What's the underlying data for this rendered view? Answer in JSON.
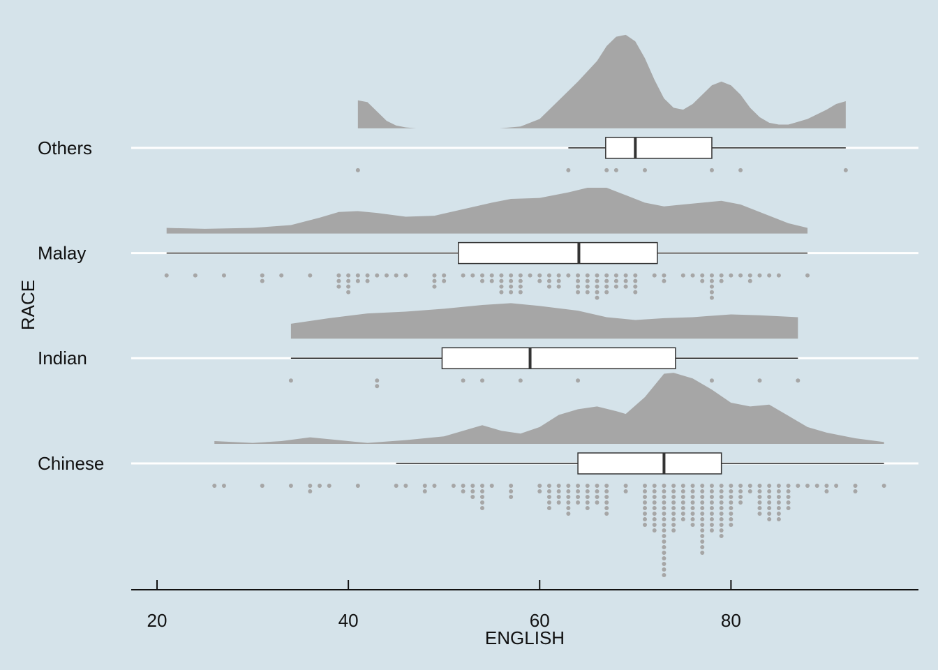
{
  "chart_data": {
    "type": "raincloud",
    "x_label": "ENGLISH",
    "y_label": "RACE",
    "xlim": [
      17.3,
      99.6
    ],
    "xticks": [
      20,
      40,
      60,
      80
    ],
    "grid": true,
    "color": "#a6a6a6",
    "categories": [
      "Chinese",
      "Indian",
      "Malay",
      "Others"
    ],
    "groups": [
      {
        "box": [
          45,
          64,
          73,
          79,
          96
        ],
        "density_x": [
          26,
          30,
          33,
          36,
          39,
          42,
          46,
          50,
          52,
          54,
          56,
          58,
          60,
          62,
          64,
          66,
          68,
          69,
          71,
          73,
          74,
          76,
          78,
          80,
          82,
          84,
          86,
          88,
          90,
          93,
          96
        ],
        "density_y": [
          0.03,
          0.01,
          0.03,
          0.07,
          0.04,
          0.01,
          0.04,
          0.08,
          0.14,
          0.2,
          0.14,
          0.11,
          0.18,
          0.31,
          0.37,
          0.4,
          0.35,
          0.32,
          0.5,
          0.75,
          0.76,
          0.7,
          0.58,
          0.44,
          0.4,
          0.42,
          0.3,
          0.18,
          0.12,
          0.06,
          0.02
        ],
        "dot_x": [
          26,
          27,
          31,
          34,
          36,
          37,
          38,
          41,
          45,
          46,
          48,
          49,
          51,
          52,
          53,
          54,
          55,
          57,
          60,
          61,
          62,
          63,
          64,
          65,
          66,
          67,
          69,
          71,
          72,
          73,
          74,
          75,
          76,
          77,
          78,
          79,
          80,
          81,
          82,
          83,
          84,
          85,
          86,
          87,
          88,
          89,
          90,
          91,
          93,
          96
        ],
        "dot_counts": [
          1,
          1,
          1,
          1,
          2,
          1,
          1,
          1,
          1,
          1,
          2,
          1,
          1,
          2,
          3,
          5,
          1,
          3,
          2,
          5,
          4,
          6,
          4,
          5,
          4,
          6,
          2,
          8,
          9,
          17,
          9,
          7,
          8,
          13,
          9,
          10,
          8,
          4,
          2,
          6,
          7,
          7,
          5,
          1,
          1,
          1,
          2,
          1,
          2,
          1
        ]
      },
      {
        "box": [
          34,
          49.8,
          59,
          74.2,
          87
        ],
        "density_x": [
          34,
          38,
          42,
          46,
          50,
          54,
          57,
          60,
          64,
          67,
          70,
          73,
          76,
          80,
          83,
          87
        ],
        "density_y": [
          0.16,
          0.22,
          0.27,
          0.29,
          0.32,
          0.36,
          0.38,
          0.35,
          0.3,
          0.23,
          0.2,
          0.22,
          0.23,
          0.26,
          0.25,
          0.23
        ],
        "dot_x": [
          34,
          43,
          52,
          54,
          58,
          64,
          78,
          83,
          87
        ],
        "dot_counts": [
          1,
          2,
          1,
          1,
          1,
          1,
          1,
          1,
          1
        ]
      },
      {
        "box": [
          21,
          51.5,
          64.1,
          72.3,
          88
        ],
        "density_x": [
          21,
          25,
          30,
          34,
          37,
          39,
          41,
          43,
          46,
          49,
          52,
          55,
          57,
          60,
          63,
          65,
          67,
          69,
          71,
          73,
          75,
          77,
          79,
          81,
          84,
          86,
          88
        ],
        "density_y": [
          0.06,
          0.05,
          0.06,
          0.09,
          0.17,
          0.23,
          0.24,
          0.22,
          0.18,
          0.19,
          0.26,
          0.33,
          0.37,
          0.38,
          0.44,
          0.49,
          0.49,
          0.41,
          0.33,
          0.29,
          0.31,
          0.33,
          0.35,
          0.31,
          0.19,
          0.11,
          0.06
        ],
        "dot_x": [
          21,
          24,
          27,
          31,
          33,
          36,
          39,
          40,
          41,
          42,
          43,
          44,
          45,
          46,
          49,
          50,
          52,
          53,
          54,
          55,
          56,
          57,
          58,
          59,
          60,
          61,
          62,
          63,
          64,
          65,
          66,
          67,
          68,
          69,
          70,
          72,
          73,
          75,
          76,
          77,
          78,
          79,
          80,
          81,
          82,
          83,
          84,
          85,
          88
        ],
        "dot_counts": [
          1,
          1,
          1,
          2,
          1,
          1,
          3,
          4,
          2,
          2,
          1,
          1,
          1,
          1,
          3,
          2,
          1,
          1,
          2,
          2,
          4,
          4,
          4,
          1,
          2,
          3,
          3,
          1,
          4,
          4,
          5,
          4,
          3,
          3,
          4,
          1,
          2,
          1,
          1,
          2,
          5,
          2,
          1,
          1,
          2,
          1,
          1,
          1,
          1
        ]
      },
      {
        "box": [
          63,
          66.9,
          70,
          78,
          92
        ],
        "density_x": [
          41,
          42,
          43,
          44,
          45,
          46,
          47.1,
          null,
          55.8,
          58,
          60,
          62,
          64,
          66,
          67,
          68,
          69,
          70,
          71,
          72,
          73,
          74,
          75,
          76,
          77,
          78,
          79,
          80,
          81,
          82,
          83,
          84,
          85,
          86,
          88,
          90,
          91,
          92
        ],
        "density_y": [
          0.3,
          0.28,
          0.18,
          0.08,
          0.03,
          0.01,
          0,
          null,
          0,
          0.02,
          0.1,
          0.3,
          0.5,
          0.72,
          0.88,
          0.98,
          1,
          0.93,
          0.75,
          0.52,
          0.32,
          0.22,
          0.2,
          0.26,
          0.36,
          0.46,
          0.5,
          0.46,
          0.36,
          0.22,
          0.12,
          0.06,
          0.04,
          0.04,
          0.1,
          0.2,
          0.26,
          0.29
        ],
        "dot_x": [
          41,
          63,
          67,
          68,
          71,
          78,
          81,
          92
        ],
        "dot_counts": [
          1,
          1,
          1,
          1,
          1,
          1,
          1,
          1
        ]
      }
    ]
  }
}
